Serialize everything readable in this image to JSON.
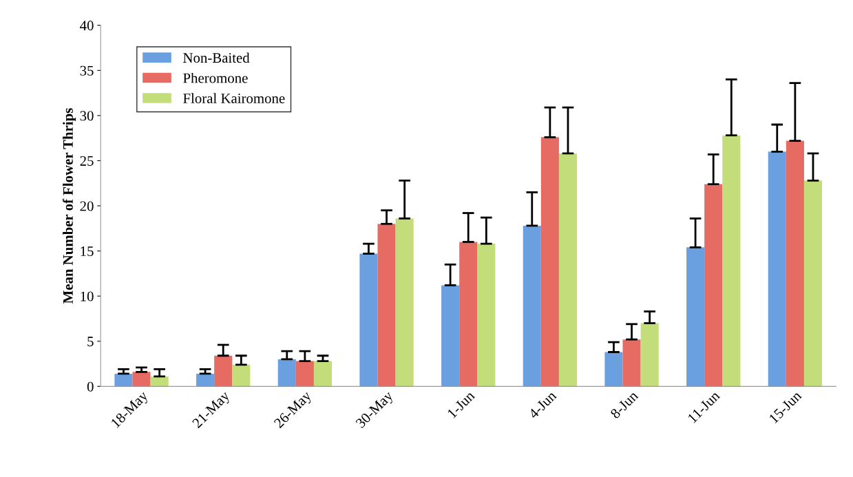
{
  "chart_data": {
    "type": "bar",
    "ylabel": "Mean Number of Flower Thrips",
    "categories": [
      "18-May",
      "21-May",
      "26-May",
      "30-May",
      "1-Jun",
      "4-Jun",
      "8-Jun",
      "11-Jun",
      "15-Jun"
    ],
    "series": [
      {
        "name": "Non-Baited",
        "color": "#6a9fe0",
        "values": [
          1.4,
          1.4,
          3.0,
          14.7,
          11.2,
          17.8,
          3.8,
          15.4,
          26.0
        ],
        "errors": [
          [
            1.4,
            1.9
          ],
          [
            1.4,
            1.9
          ],
          [
            3.0,
            3.9
          ],
          [
            14.7,
            15.8
          ],
          [
            11.2,
            13.5
          ],
          [
            17.8,
            21.5
          ],
          [
            3.8,
            4.9
          ],
          [
            15.4,
            18.6
          ],
          [
            26.0,
            29.0
          ]
        ]
      },
      {
        "name": "Pheromone",
        "color": "#e66b63",
        "values": [
          1.6,
          3.4,
          2.8,
          18.0,
          16.0,
          27.6,
          5.2,
          22.4,
          27.2
        ],
        "errors": [
          [
            1.6,
            2.1
          ],
          [
            3.4,
            4.6
          ],
          [
            2.8,
            3.9
          ],
          [
            18.0,
            19.5
          ],
          [
            16.0,
            19.2
          ],
          [
            27.6,
            30.9
          ],
          [
            5.2,
            6.9
          ],
          [
            22.4,
            25.7
          ],
          [
            27.2,
            33.6
          ]
        ]
      },
      {
        "name": "Floral Kairomone",
        "color": "#c3dd7b",
        "values": [
          1.1,
          2.4,
          2.8,
          18.6,
          15.8,
          25.8,
          7.0,
          27.8,
          22.8
        ],
        "errors": [
          [
            1.1,
            1.9
          ],
          [
            2.4,
            3.4
          ],
          [
            2.8,
            3.4
          ],
          [
            18.6,
            22.8
          ],
          [
            15.8,
            18.7
          ],
          [
            25.8,
            30.9
          ],
          [
            7.0,
            8.3
          ],
          [
            27.8,
            34.0
          ],
          [
            22.8,
            25.8
          ]
        ]
      }
    ],
    "ylim": [
      0,
      40
    ],
    "yticks": [
      0,
      5,
      10,
      15,
      20,
      25,
      30,
      35,
      40
    ],
    "grid": false,
    "legend": "top left"
  }
}
